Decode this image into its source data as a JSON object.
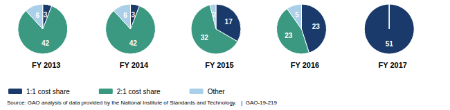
{
  "chart_data": [
    {
      "type": "pie",
      "title": "FY 2013",
      "categories": [
        "1:1 cost share",
        "2:1 cost share",
        "Other"
      ],
      "values": [
        3,
        42,
        6
      ],
      "colors": [
        "#1a3a6b",
        "#3a9980",
        "#aacfe8"
      ],
      "data_labels": true,
      "legend": "bottom",
      "annotations": [
        "Source: GAO analysis of data provided by the National Institute of Standards and Technology.   |  GAO-19-219"
      ]
    },
    {
      "type": "pie",
      "title": "FY 2014",
      "categories": [
        "1:1 cost share",
        "2:1 cost share",
        "Other"
      ],
      "values": [
        3,
        42,
        6
      ],
      "colors": [
        "#1a3a6b",
        "#3a9980",
        "#aacfe8"
      ],
      "data_labels": true
    },
    {
      "type": "pie",
      "title": "FY 2015",
      "categories": [
        "1:1 cost share",
        "2:1 cost share",
        "Other"
      ],
      "values": [
        17,
        32,
        2
      ],
      "colors": [
        "#1a3a6b",
        "#3a9980",
        "#aacfe8"
      ],
      "data_labels": true
    },
    {
      "type": "pie",
      "title": "FY 2016",
      "categories": [
        "1:1 cost share",
        "2:1 cost share",
        "Other"
      ],
      "values": [
        23,
        23,
        5
      ],
      "colors": [
        "#1a3a6b",
        "#3a9980",
        "#aacfe8"
      ],
      "data_labels": true
    },
    {
      "type": "pie",
      "title": "FY 2017",
      "categories": [
        "1:1 cost share",
        "2:1 cost share",
        "Other"
      ],
      "values": [
        51,
        0,
        0
      ],
      "colors": [
        "#1a3a6b",
        "#3a9980",
        "#aacfe8"
      ],
      "data_labels": true
    }
  ]
}
